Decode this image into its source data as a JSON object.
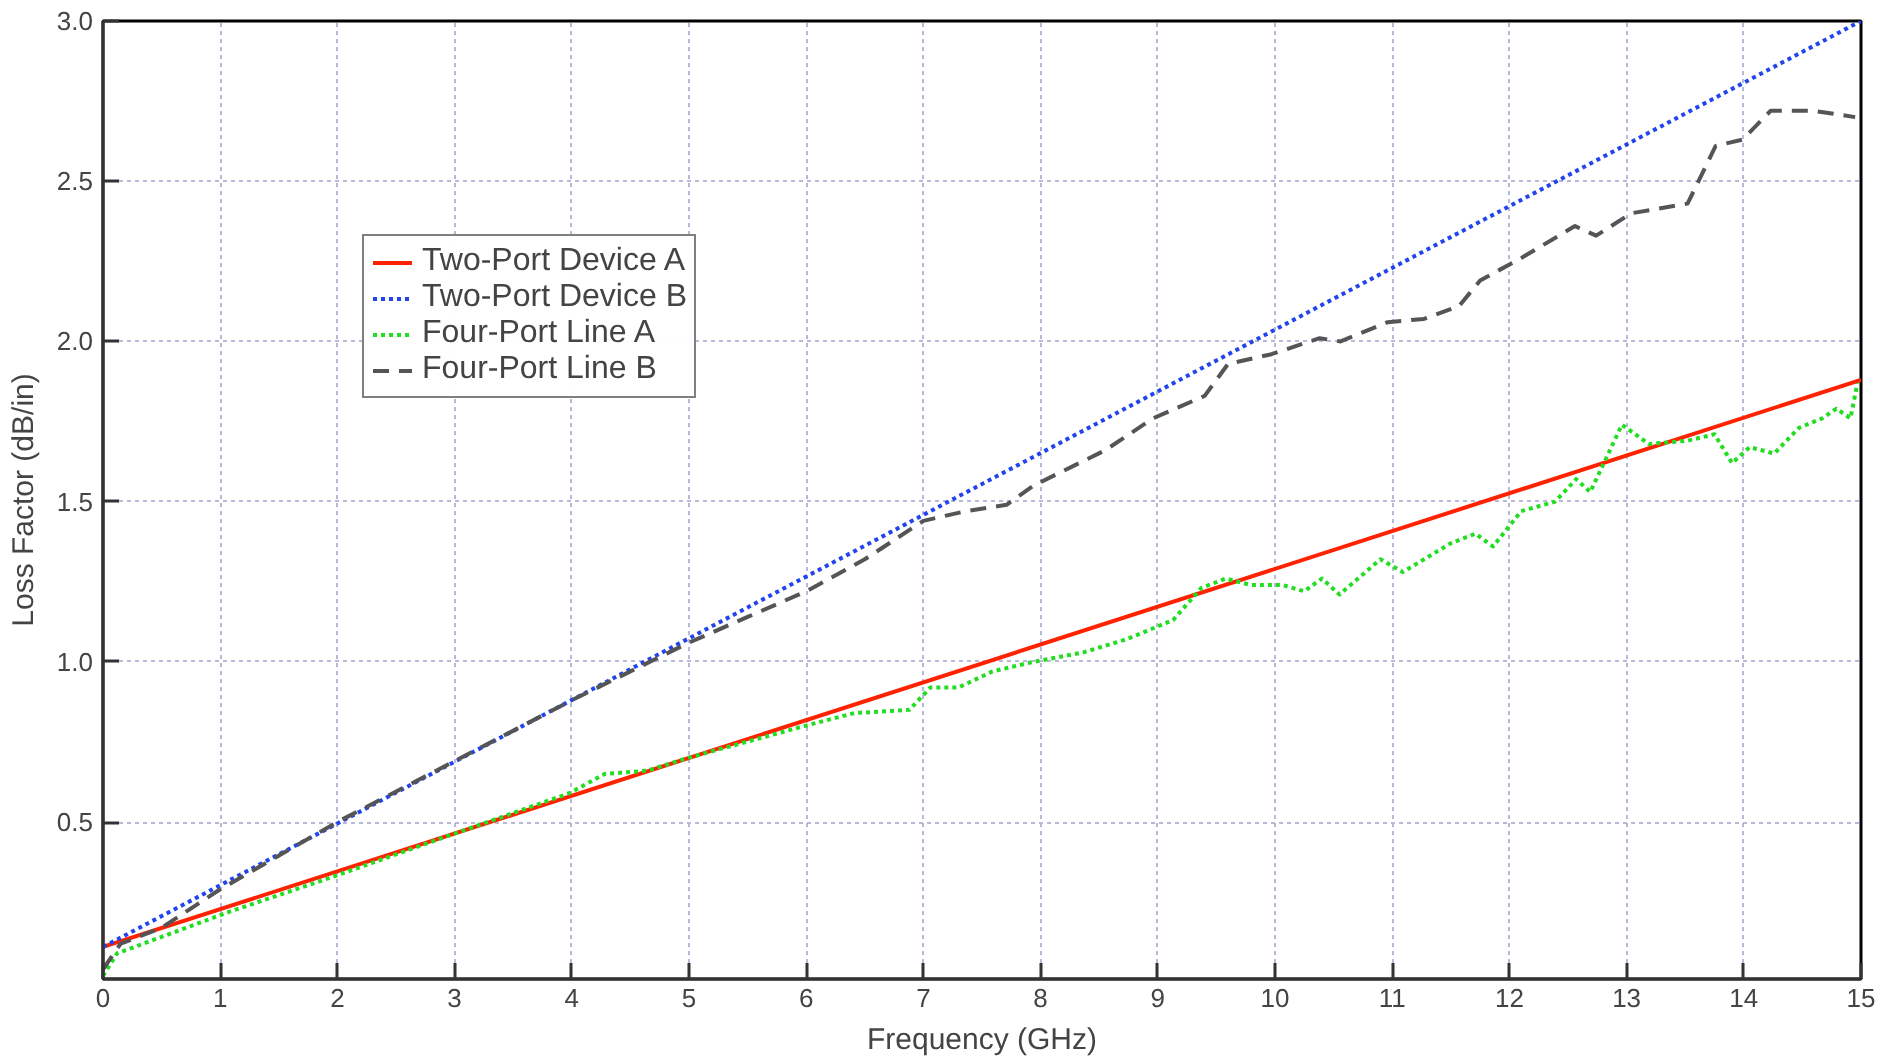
{
  "chart_data": {
    "type": "line",
    "xlabel": "Frequency (GHz)",
    "ylabel": "Loss Factor (dB/in)",
    "xlim": [
      0,
      15
    ],
    "ylim": [
      0.01,
      3.0
    ],
    "xticks": [
      0,
      1,
      2,
      3,
      4,
      5,
      6,
      7,
      8,
      9,
      10,
      11,
      12,
      13,
      14,
      15
    ],
    "yticks": [
      {
        "value": 0.5,
        "label": "0.5"
      },
      {
        "value": 1.0,
        "label": "1.0"
      },
      {
        "value": 1.5,
        "label": "1.5"
      },
      {
        "value": 2.0,
        "label": "2.0"
      },
      {
        "value": 2.5,
        "label": "2.5"
      },
      {
        "value": 3.0,
        "label": "3.0"
      }
    ],
    "grid": true,
    "legend": "top left",
    "series": [
      {
        "name": "Two-Port Device A",
        "color": "#ff2200",
        "line_style": "solid",
        "x": [
          0,
          15
        ],
        "values": [
          0.11,
          1.88
        ]
      },
      {
        "name": "Two-Port Device B",
        "color": "#2244ee",
        "line_style": "dotted",
        "x": [
          0,
          15
        ],
        "values": [
          0.11,
          3.0
        ]
      },
      {
        "name": "Four-Port Line A",
        "color": "#22dd22",
        "line_style": "dotted",
        "x": [
          0,
          0.12,
          1.08,
          1.97,
          2.97,
          3.98,
          4.28,
          4.64,
          4.99,
          5.99,
          6.41,
          6.88,
          7.06,
          7.3,
          7.59,
          7.94,
          8.37,
          8.73,
          9.13,
          9.37,
          9.58,
          9.79,
          10.06,
          10.25,
          10.4,
          10.55,
          10.9,
          11.09,
          11.5,
          11.71,
          11.86,
          12.1,
          12.39,
          12.57,
          12.69,
          12.96,
          13.19,
          13.52,
          13.75,
          13.9,
          14.05,
          14.26,
          14.47,
          14.67,
          14.79,
          14.91,
          14.97
        ],
        "values": [
          0.02,
          0.09,
          0.22,
          0.33,
          0.46,
          0.59,
          0.65,
          0.66,
          0.7,
          0.8,
          0.84,
          0.85,
          0.92,
          0.92,
          0.97,
          1.0,
          1.03,
          1.07,
          1.13,
          1.23,
          1.26,
          1.24,
          1.24,
          1.22,
          1.26,
          1.21,
          1.32,
          1.28,
          1.37,
          1.4,
          1.36,
          1.47,
          1.5,
          1.57,
          1.53,
          1.74,
          1.68,
          1.69,
          1.71,
          1.62,
          1.67,
          1.65,
          1.73,
          1.76,
          1.79,
          1.76,
          1.87
        ]
      },
      {
        "name": "Four-Port Line B",
        "color": "#555555",
        "line_style": "dashed",
        "x": [
          0,
          0.15,
          0.5,
          1,
          2,
          3,
          4,
          4.5,
          5,
          5.5,
          6,
          6.5,
          7.0,
          7.36,
          7.71,
          7.94,
          8.55,
          8.96,
          9.4,
          9.6,
          9.97,
          10.38,
          10.56,
          10.96,
          11.27,
          11.57,
          11.75,
          12.1,
          12.56,
          12.74,
          13.04,
          13.52,
          13.76,
          13.99,
          14.23,
          14.59,
          14.95
        ],
        "values": [
          0.04,
          0.12,
          0.17,
          0.29,
          0.5,
          0.69,
          0.88,
          0.97,
          1.06,
          1.14,
          1.22,
          1.32,
          1.44,
          1.47,
          1.49,
          1.55,
          1.66,
          1.76,
          1.83,
          1.93,
          1.96,
          2.01,
          2.0,
          2.06,
          2.07,
          2.11,
          2.19,
          2.26,
          2.36,
          2.33,
          2.4,
          2.43,
          2.61,
          2.63,
          2.72,
          2.72,
          2.7
        ]
      }
    ]
  }
}
